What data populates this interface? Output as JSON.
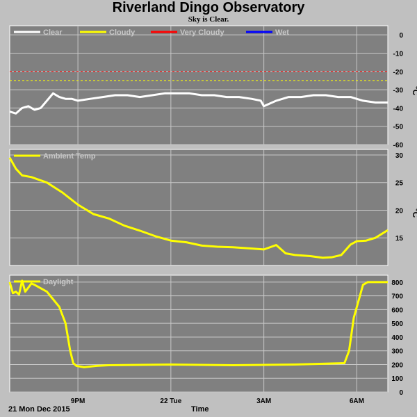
{
  "header": {
    "title": "Riverland Dingo Observatory",
    "subtitle": "Sky is Clear."
  },
  "footer": {
    "date": "21 Mon Dec 2015",
    "xlabel": "Time"
  },
  "colors": {
    "panel_bg": "#808080",
    "page_bg": "#c0c0c0",
    "grid": "#c8c8c8",
    "clear": "#ffffff",
    "cloudy": "#ffff00",
    "very_cloudy": "#ff0000",
    "wet": "#0000ff",
    "series": "#ffff00"
  },
  "chart_data": [
    {
      "type": "line",
      "title": "",
      "ylabel": "°C",
      "ylim": [
        -60,
        5
      ],
      "yticks": [
        0,
        -10,
        -20,
        -30,
        -40,
        -50,
        -60
      ],
      "grid": true,
      "legend_position": "top-left",
      "legend": [
        "Clear",
        "Cloudy",
        "Very Cloudy",
        "Wet"
      ],
      "thresholds": [
        {
          "name": "Very Cloudy",
          "value": -20
        },
        {
          "name": "Cloudy",
          "value": -25
        }
      ],
      "x_ticks": [
        "9PM",
        "22 Tue",
        "3AM",
        "6AM"
      ],
      "x_tick_hours": [
        21,
        24,
        27,
        30
      ],
      "xlim_hours": [
        18.8,
        31.0
      ],
      "series": [
        {
          "name": "Clear",
          "x_hours": [
            18.8,
            19.0,
            19.2,
            19.4,
            19.6,
            19.8,
            20.0,
            20.2,
            20.4,
            20.6,
            20.8,
            21.0,
            21.4,
            21.8,
            22.2,
            22.6,
            23.0,
            23.4,
            23.8,
            24.2,
            24.6,
            25.0,
            25.4,
            25.8,
            26.2,
            26.6,
            26.9,
            27.0,
            27.4,
            27.8,
            28.2,
            28.6,
            29.0,
            29.4,
            29.8,
            30.2,
            30.6,
            31.0
          ],
          "values": [
            -42,
            -43,
            -40,
            -39,
            -41,
            -40,
            -36,
            -32,
            -34,
            -35,
            -35,
            -36,
            -35,
            -34,
            -33,
            -33,
            -34,
            -33,
            -32,
            -32,
            -32,
            -33,
            -33,
            -34,
            -34,
            -35,
            -36,
            -39,
            -36,
            -34,
            -34,
            -33,
            -33,
            -34,
            -34,
            -36,
            -37,
            -37
          ]
        }
      ]
    },
    {
      "type": "line",
      "title": "",
      "ylabel": "°C",
      "ylim": [
        10,
        31
      ],
      "yticks": [
        30,
        25,
        20,
        15
      ],
      "grid": true,
      "legend_position": "top-left",
      "legend": [
        "Ambient Temp"
      ],
      "x_ticks": [
        "9PM",
        "22 Tue",
        "3AM",
        "6AM"
      ],
      "series": [
        {
          "name": "Ambient Temp",
          "x_hours": [
            18.8,
            19.0,
            19.2,
            19.5,
            20.0,
            20.5,
            21.0,
            21.5,
            22.0,
            22.5,
            23.0,
            23.5,
            24.0,
            24.5,
            25.0,
            25.5,
            26.0,
            26.5,
            27.0,
            27.4,
            27.7,
            28.0,
            28.5,
            28.9,
            29.2,
            29.5,
            29.8,
            30.0,
            30.3,
            30.6,
            31.0
          ],
          "values": [
            29.5,
            27.5,
            26.3,
            26.0,
            25.0,
            23.2,
            21.0,
            19.3,
            18.5,
            17.2,
            16.3,
            15.3,
            14.5,
            14.2,
            13.6,
            13.4,
            13.3,
            13.1,
            12.9,
            13.7,
            12.2,
            11.9,
            11.7,
            11.4,
            11.5,
            11.9,
            13.8,
            14.4,
            14.5,
            15.0,
            16.4
          ]
        }
      ]
    },
    {
      "type": "line",
      "title": "",
      "ylabel": "",
      "ylim": [
        0,
        850
      ],
      "yticks": [
        800,
        700,
        600,
        500,
        400,
        300,
        200,
        100,
        0
      ],
      "grid": true,
      "legend_position": "top-left",
      "legend": [
        "Daylight"
      ],
      "x_ticks": [
        "9PM",
        "22 Tue",
        "3AM",
        "6AM"
      ],
      "series": [
        {
          "name": "Daylight",
          "x_hours": [
            18.8,
            18.9,
            19.0,
            19.1,
            19.2,
            19.3,
            19.4,
            19.5,
            19.6,
            20.0,
            20.4,
            20.6,
            20.75,
            20.85,
            20.95,
            21.2,
            21.6,
            22.0,
            24.0,
            26.0,
            28.0,
            29.6,
            29.75,
            29.9,
            30.1,
            30.2,
            30.35,
            30.5,
            31.0
          ],
          "values": [
            800,
            720,
            730,
            710,
            810,
            730,
            760,
            790,
            780,
            730,
            620,
            500,
            300,
            210,
            190,
            180,
            190,
            195,
            200,
            195,
            200,
            210,
            300,
            540,
            700,
            780,
            800,
            800,
            800
          ]
        }
      ]
    }
  ]
}
